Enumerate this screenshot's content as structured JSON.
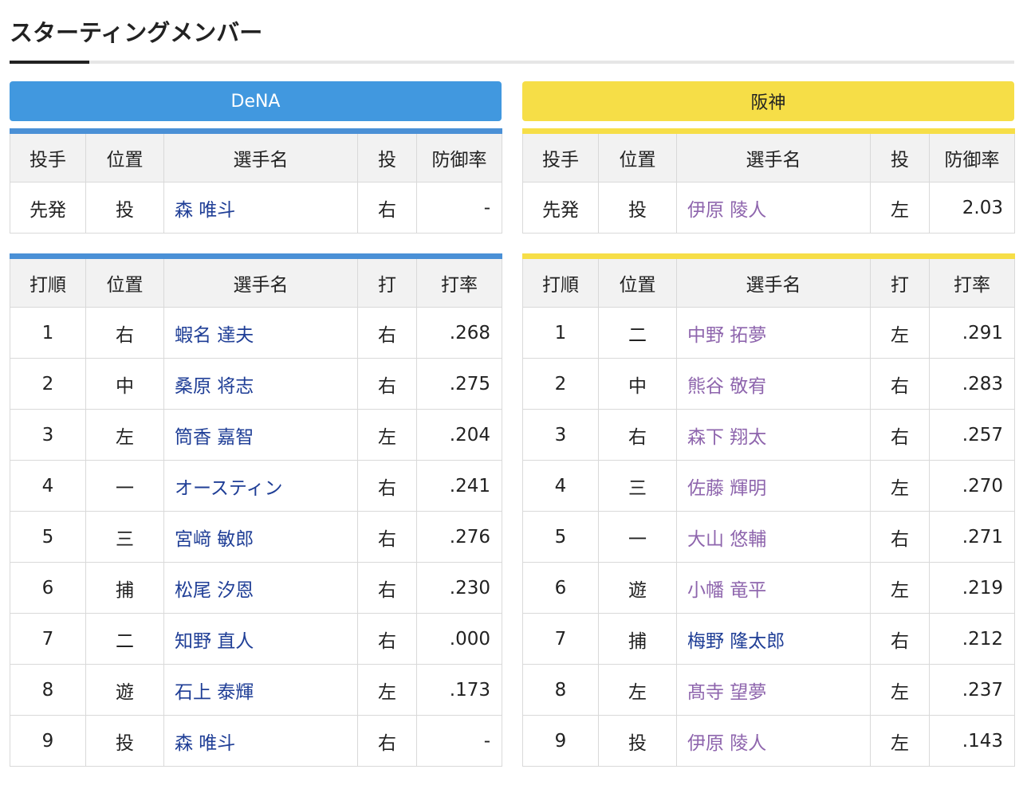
{
  "title": "スターティングメンバー",
  "teams": {
    "left": {
      "name": "DeNA",
      "color": "#4198df",
      "name_color": "#1f3e96"
    },
    "right": {
      "name": "阪神",
      "color": "#f6de47",
      "name_color": "#8e65ad"
    }
  },
  "pitcher_headers": [
    "投手",
    "位置",
    "選手名",
    "投",
    "防御率"
  ],
  "batter_headers": [
    "打順",
    "位置",
    "選手名",
    "打",
    "打率"
  ],
  "left_pitcher": {
    "role": "先発",
    "pos": "投",
    "name": "森 唯斗",
    "hand": "右",
    "era": "-"
  },
  "right_pitcher": {
    "role": "先発",
    "pos": "投",
    "name": "伊原 陵人",
    "hand": "左",
    "era": "2.03"
  },
  "left_batters": [
    {
      "order": "1",
      "pos": "右",
      "name": "蝦名 達夫",
      "hand": "右",
      "avg": ".268"
    },
    {
      "order": "2",
      "pos": "中",
      "name": "桑原 将志",
      "hand": "右",
      "avg": ".275"
    },
    {
      "order": "3",
      "pos": "左",
      "name": "筒香 嘉智",
      "hand": "左",
      "avg": ".204"
    },
    {
      "order": "4",
      "pos": "一",
      "name": "オースティン",
      "hand": "右",
      "avg": ".241"
    },
    {
      "order": "5",
      "pos": "三",
      "name": "宮﨑 敏郎",
      "hand": "右",
      "avg": ".276"
    },
    {
      "order": "6",
      "pos": "捕",
      "name": "松尾 汐恩",
      "hand": "右",
      "avg": ".230"
    },
    {
      "order": "7",
      "pos": "二",
      "name": "知野 直人",
      "hand": "右",
      "avg": ".000"
    },
    {
      "order": "8",
      "pos": "遊",
      "name": "石上 泰輝",
      "hand": "左",
      "avg": ".173"
    },
    {
      "order": "9",
      "pos": "投",
      "name": "森 唯斗",
      "hand": "右",
      "avg": "-"
    }
  ],
  "right_batters": [
    {
      "order": "1",
      "pos": "二",
      "name": "中野 拓夢",
      "hand": "左",
      "avg": ".291"
    },
    {
      "order": "2",
      "pos": "中",
      "name": "熊谷 敬宥",
      "hand": "右",
      "avg": ".283"
    },
    {
      "order": "3",
      "pos": "右",
      "name": "森下 翔太",
      "hand": "右",
      "avg": ".257"
    },
    {
      "order": "4",
      "pos": "三",
      "name": "佐藤 輝明",
      "hand": "左",
      "avg": ".270"
    },
    {
      "order": "5",
      "pos": "一",
      "name": "大山 悠輔",
      "hand": "右",
      "avg": ".271"
    },
    {
      "order": "6",
      "pos": "遊",
      "name": "小幡 竜平",
      "hand": "左",
      "avg": ".219"
    },
    {
      "order": "7",
      "pos": "捕",
      "name": "梅野 隆太郎",
      "hand": "右",
      "avg": ".212",
      "alt_color": true
    },
    {
      "order": "8",
      "pos": "左",
      "name": "髙寺 望夢",
      "hand": "左",
      "avg": ".237"
    },
    {
      "order": "9",
      "pos": "投",
      "name": "伊原 陵人",
      "hand": "左",
      "avg": ".143"
    }
  ]
}
